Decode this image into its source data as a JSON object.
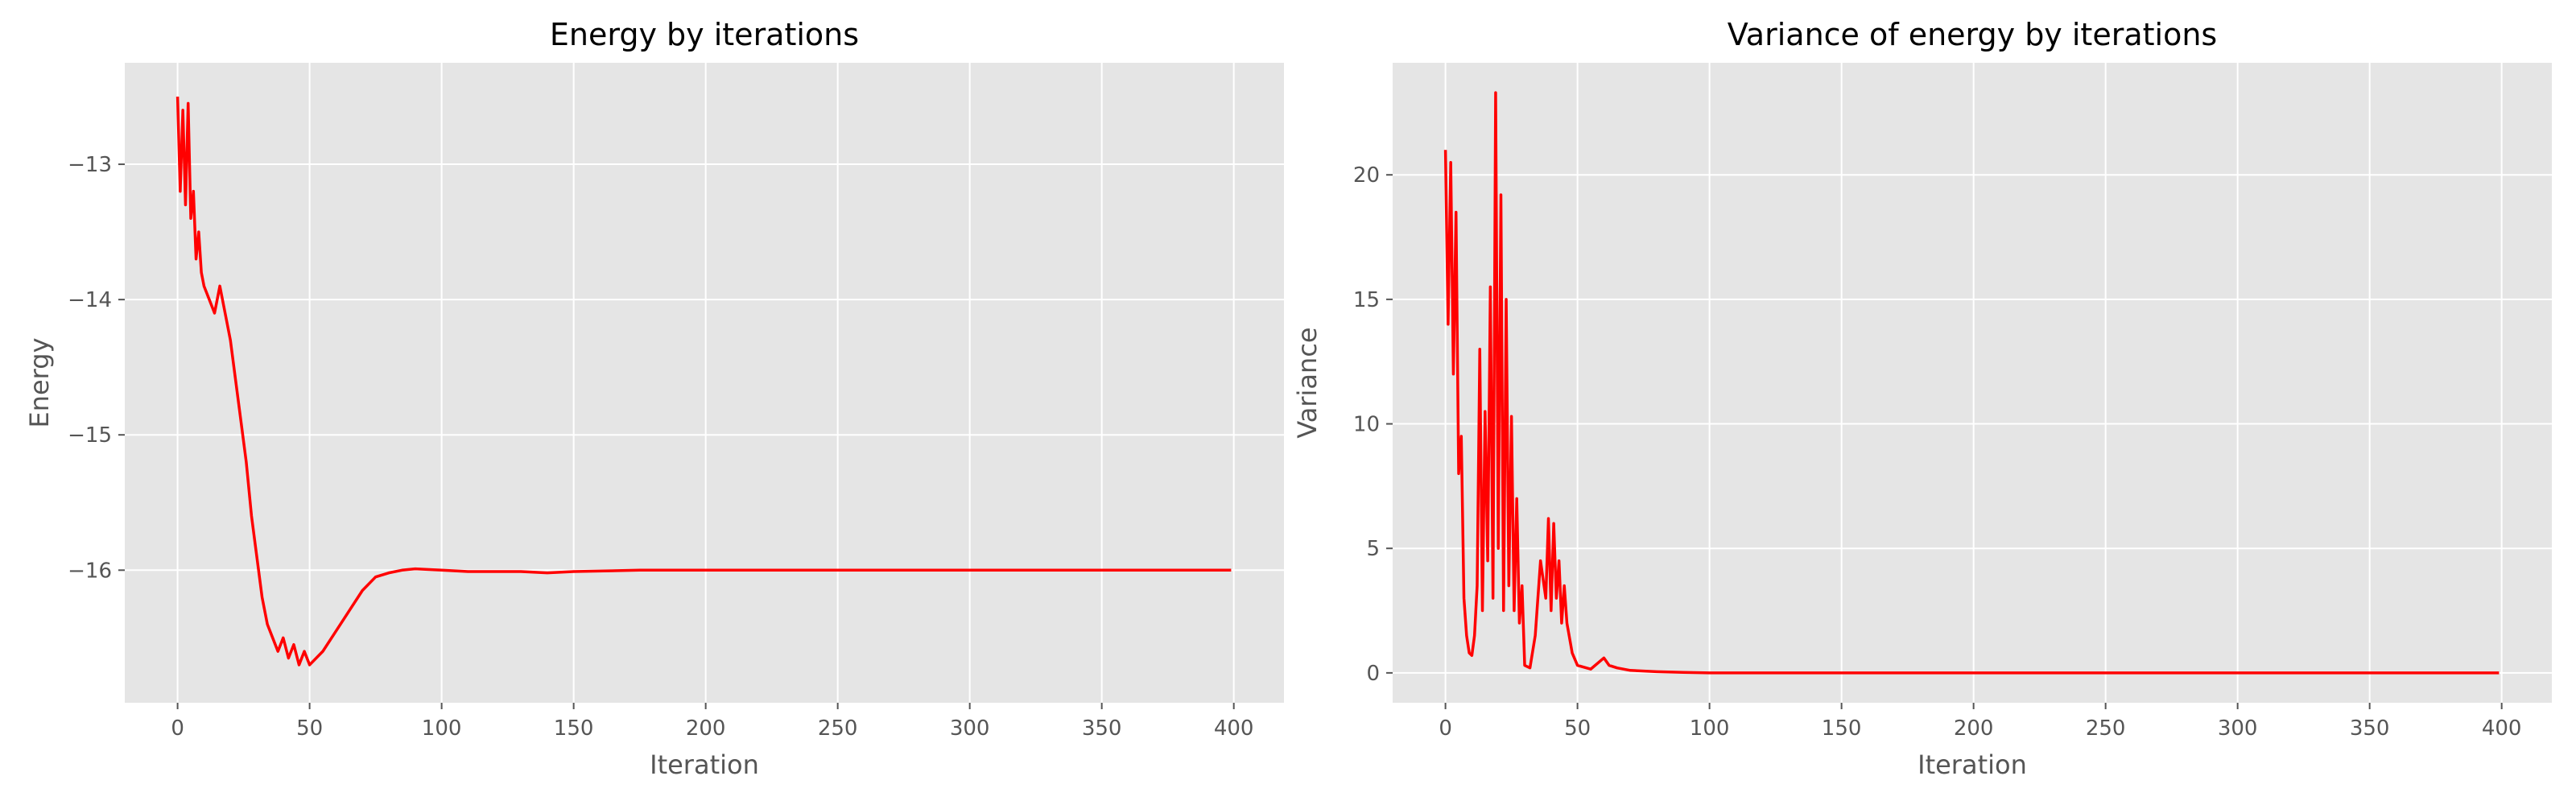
{
  "chart_data": [
    {
      "type": "line",
      "title": "Energy by iterations",
      "xlabel": "Iteration",
      "ylabel": "Energy",
      "xlim": [
        -20,
        419
      ],
      "ylim": [
        -16.98,
        -12.25
      ],
      "xticks": [
        0,
        50,
        100,
        150,
        200,
        250,
        300,
        350,
        400
      ],
      "yticks": [
        -13,
        -14,
        -15,
        -16
      ],
      "xtick_labels": [
        "0",
        "50",
        "100",
        "150",
        "200",
        "250",
        "300",
        "350",
        "400"
      ],
      "ytick_labels": [
        "−13",
        "−14",
        "−15",
        "−16"
      ],
      "grid": true,
      "background": "#e5e5e5",
      "grid_color": "#ffffff",
      "line_color": "#ff0000",
      "series": [
        {
          "x": [
            0,
            1,
            2,
            3,
            4,
            5,
            6,
            7,
            8,
            9,
            10,
            12,
            14,
            16,
            18,
            20,
            22,
            24,
            26,
            28,
            30,
            32,
            34,
            36,
            38,
            40,
            42,
            44,
            46,
            48,
            50,
            55,
            60,
            65,
            70,
            75,
            80,
            85,
            90,
            100,
            110,
            120,
            130,
            140,
            150,
            175,
            200,
            250,
            300,
            350,
            399
          ],
          "y": [
            -12.5,
            -13.2,
            -12.6,
            -13.3,
            -12.55,
            -13.4,
            -13.2,
            -13.7,
            -13.5,
            -13.8,
            -13.9,
            -14.0,
            -14.1,
            -13.9,
            -14.1,
            -14.3,
            -14.6,
            -14.9,
            -15.2,
            -15.6,
            -15.9,
            -16.2,
            -16.4,
            -16.5,
            -16.6,
            -16.5,
            -16.65,
            -16.55,
            -16.7,
            -16.6,
            -16.7,
            -16.6,
            -16.45,
            -16.3,
            -16.15,
            -16.05,
            -16.02,
            -16.0,
            -15.99,
            -16.0,
            -16.01,
            -16.01,
            -16.01,
            -16.02,
            -16.01,
            -16.0,
            -16.0,
            -16.0,
            -16.0,
            -16.0,
            -16.0
          ]
        }
      ]
    },
    {
      "type": "line",
      "title": "Variance of energy by iterations",
      "xlabel": "Iteration",
      "ylabel": "Variance",
      "xlim": [
        -20,
        419
      ],
      "ylim": [
        -1.2,
        24.5
      ],
      "xticks": [
        0,
        50,
        100,
        150,
        200,
        250,
        300,
        350,
        400
      ],
      "yticks": [
        0,
        5,
        10,
        15,
        20
      ],
      "xtick_labels": [
        "0",
        "50",
        "100",
        "150",
        "200",
        "250",
        "300",
        "350",
        "400"
      ],
      "ytick_labels": [
        "0",
        "5",
        "10",
        "15",
        "20"
      ],
      "grid": true,
      "background": "#e5e5e5",
      "grid_color": "#ffffff",
      "line_color": "#ff0000",
      "series": [
        {
          "x": [
            0,
            1,
            2,
            3,
            4,
            5,
            6,
            7,
            8,
            9,
            10,
            11,
            12,
            13,
            14,
            15,
            16,
            17,
            18,
            19,
            20,
            21,
            22,
            23,
            24,
            25,
            26,
            27,
            28,
            29,
            30,
            32,
            34,
            36,
            38,
            39,
            40,
            41,
            42,
            43,
            44,
            45,
            46,
            48,
            50,
            55,
            60,
            62,
            65,
            70,
            80,
            90,
            100,
            150,
            200,
            250,
            300,
            350,
            399
          ],
          "y": [
            21,
            14,
            20.5,
            12,
            18.5,
            8,
            9.5,
            3,
            1.5,
            0.8,
            0.7,
            1.5,
            3.5,
            13,
            2.5,
            10.5,
            4.5,
            15.5,
            3,
            23.3,
            5,
            19.2,
            2.5,
            15,
            3.5,
            10.3,
            2.5,
            7,
            2,
            3.5,
            0.3,
            0.2,
            1.5,
            4.5,
            3,
            6.2,
            2.5,
            6,
            3,
            4.5,
            2,
            3.5,
            2,
            0.8,
            0.3,
            0.15,
            0.6,
            0.3,
            0.2,
            0.1,
            0.05,
            0.02,
            0.0,
            0.0,
            0.0,
            0.0,
            0.0,
            0.0,
            0.0
          ]
        }
      ]
    }
  ]
}
